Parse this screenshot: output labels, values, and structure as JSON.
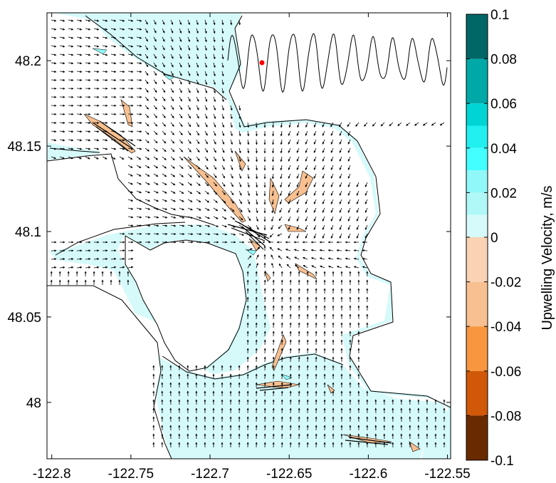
{
  "chart_data": {
    "type": "heatmap",
    "title": "",
    "xlabel": "",
    "ylabel": "",
    "xlim": [
      -122.803,
      -122.548
    ],
    "ylim": [
      47.967,
      48.228
    ],
    "x_ticks": [
      -122.8,
      -122.75,
      -122.7,
      -122.65,
      -122.6,
      -122.55
    ],
    "x_tick_labels": [
      "-122.8",
      "-122.75",
      "-122.7",
      "-122.65",
      "-122.6",
      "-122.55"
    ],
    "y_ticks": [
      48.2,
      48.15,
      48.1,
      48.05,
      48.0
    ],
    "y_tick_labels": [
      "48.2",
      "48.15",
      "48.1",
      "48.05",
      "48"
    ],
    "grid": false,
    "overlay": "velocity vector field (arrows)",
    "colorbar": {
      "label": "Upwelling Velocity, m/s",
      "range": [
        -0.1,
        0.1
      ],
      "ticks": [
        0.1,
        0.08,
        0.06,
        0.04,
        0.02,
        0,
        -0.02,
        -0.04,
        -0.06,
        -0.08,
        -0.1
      ],
      "tick_labels": [
        "0.1",
        "0.08",
        "0.06",
        "0.04",
        "0.02",
        "0",
        "-0.02",
        "-0.04",
        "-0.06",
        "-0.08",
        "-0.1"
      ],
      "bands": [
        {
          "from": 0.08,
          "to": 0.1,
          "color": "#006666"
        },
        {
          "from": 0.06,
          "to": 0.08,
          "color": "#00a8a8"
        },
        {
          "from": 0.05,
          "to": 0.06,
          "color": "#00d4d4"
        },
        {
          "from": 0.04,
          "to": 0.05,
          "color": "#22f0f0"
        },
        {
          "from": 0.03,
          "to": 0.04,
          "color": "#44ffff"
        },
        {
          "from": 0.02,
          "to": 0.03,
          "color": "#90f8f8"
        },
        {
          "from": 0.01,
          "to": 0.02,
          "color": "#b0f8f8"
        },
        {
          "from": 0.0,
          "to": 0.01,
          "color": "#d6fafa"
        },
        {
          "from": -0.02,
          "to": 0.0,
          "color": "#fad2b4"
        },
        {
          "from": -0.04,
          "to": -0.02,
          "color": "#f8c090"
        },
        {
          "from": -0.06,
          "to": -0.04,
          "color": "#f89640"
        },
        {
          "from": -0.08,
          "to": -0.06,
          "color": "#d05808"
        },
        {
          "from": -0.1,
          "to": -0.08,
          "color": "#6a2a00"
        }
      ]
    },
    "inset": {
      "description": "tidal time series with current-time marker",
      "marker_color": "#ff0000"
    }
  }
}
